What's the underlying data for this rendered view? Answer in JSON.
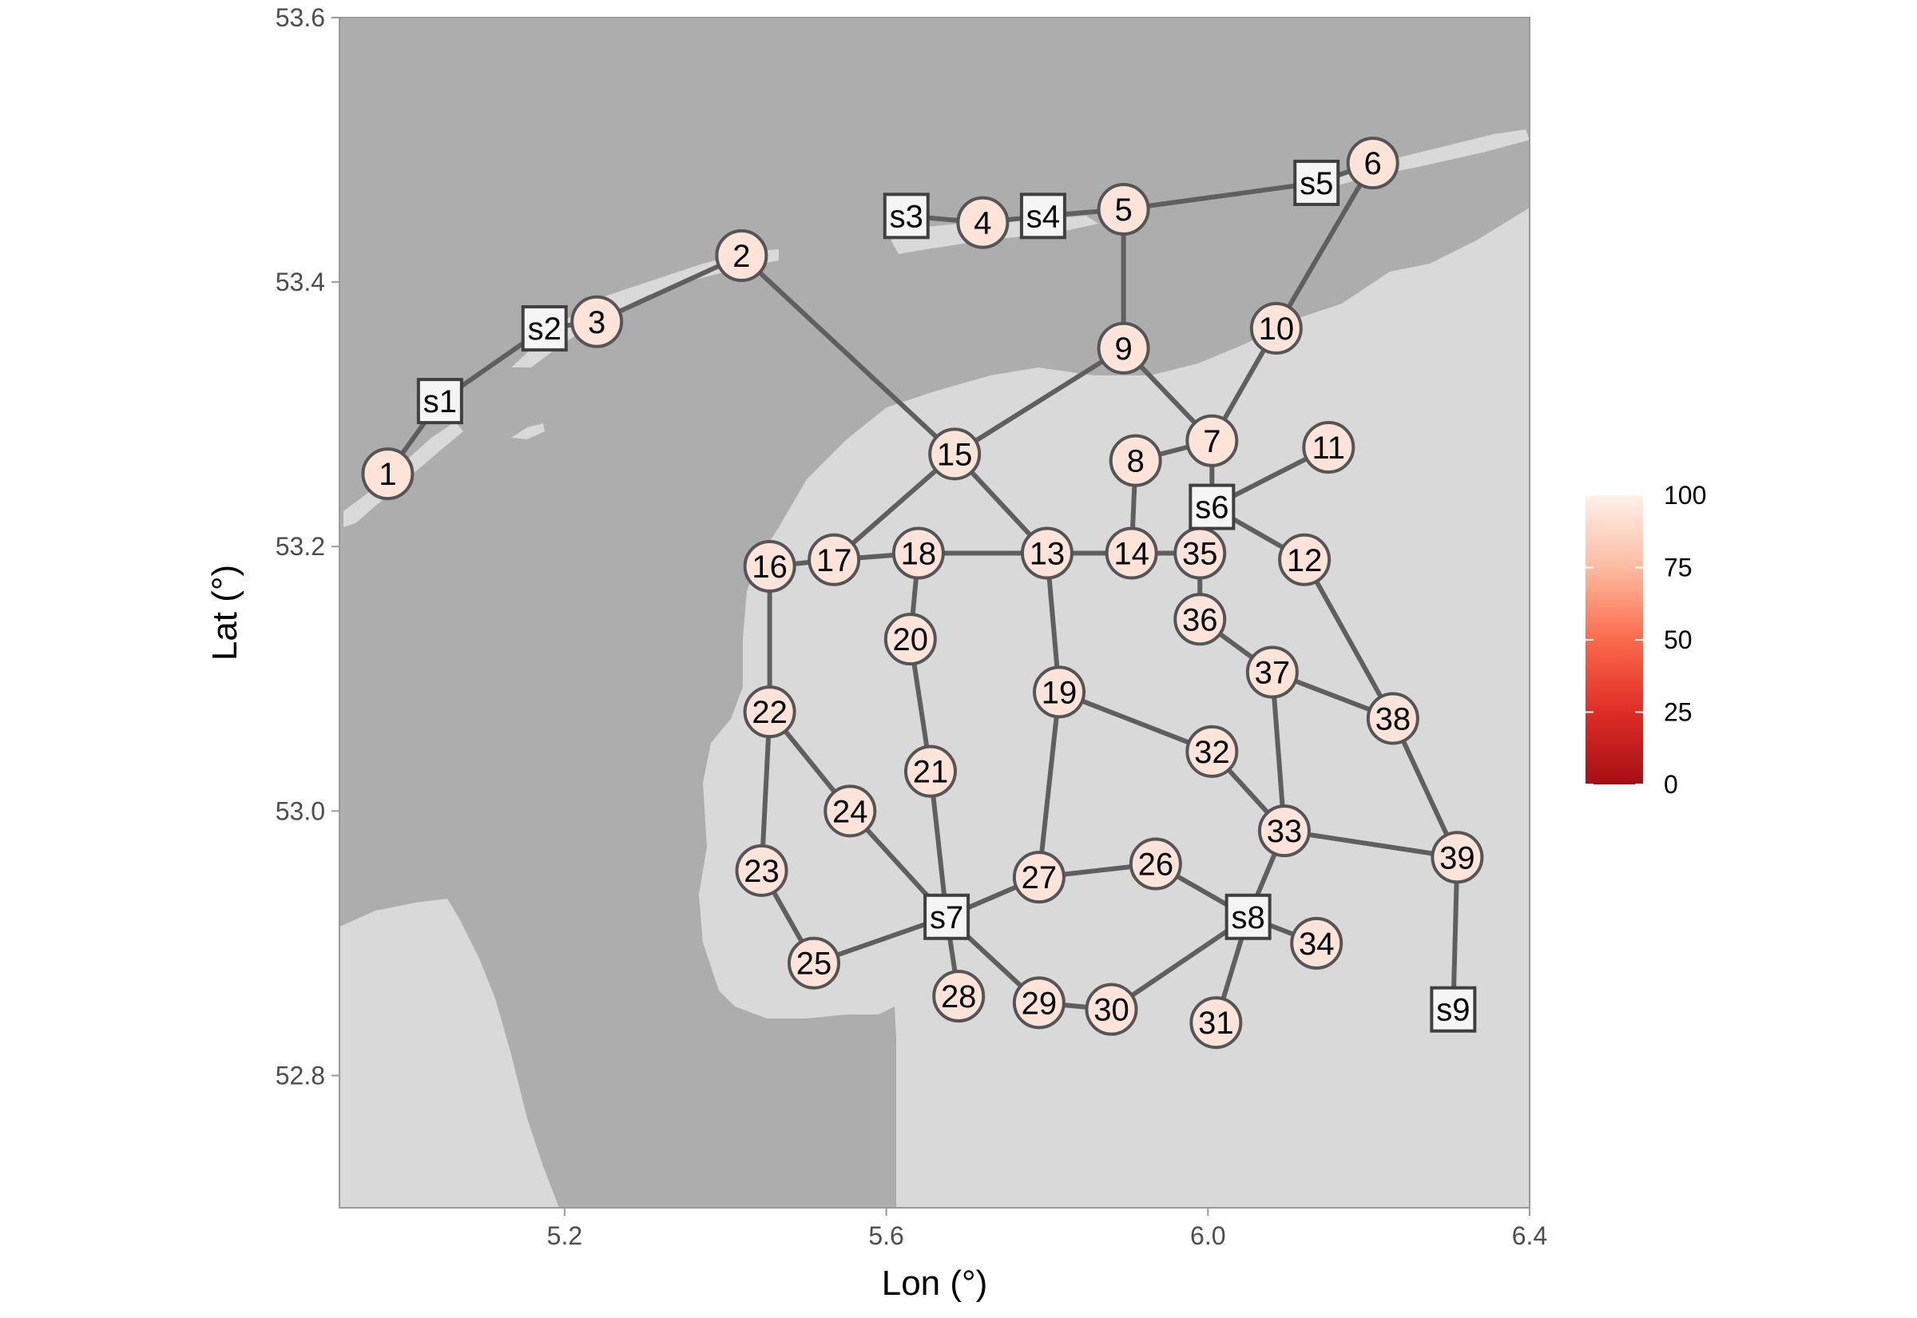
{
  "map": {
    "xlabel": "Lon (°)",
    "ylabel": "Lat (°)",
    "xlim": [
      4.92,
      6.4
    ],
    "ylim": [
      52.7,
      53.6
    ],
    "x_ticks": [
      {
        "value": 5.2,
        "label": "5.2"
      },
      {
        "value": 5.6,
        "label": "5.6"
      },
      {
        "value": 6.0,
        "label": "6.0"
      },
      {
        "value": 6.4,
        "label": "6.4"
      }
    ],
    "y_ticks": [
      {
        "value": 52.8,
        "label": "52.8"
      },
      {
        "value": 53.0,
        "label": "53.0"
      },
      {
        "value": 53.2,
        "label": "53.2"
      },
      {
        "value": 53.4,
        "label": "53.4"
      },
      {
        "value": 53.6,
        "label": "53.6"
      }
    ],
    "colors": {
      "sea": "#adadad",
      "land": "#d9d9d9",
      "edge": "#5f5f5f",
      "node_fill": "#fde3d8",
      "station_fill": "#f5f5f5"
    },
    "colorbar": {
      "min": 0,
      "max": 100,
      "labels": [
        "100",
        "75",
        "50",
        "25",
        "0"
      ],
      "colors": [
        "#fff0ea",
        "#fcbba1",
        "#fb6a4a",
        "#de2d26",
        "#a50f15"
      ]
    }
  },
  "chart_data": {
    "type": "network-map",
    "nodes": [
      {
        "id": "1",
        "kind": "node",
        "lon": 4.98,
        "lat": 53.255,
        "value": 95
      },
      {
        "id": "2",
        "kind": "node",
        "lon": 5.42,
        "lat": 53.42,
        "value": 95
      },
      {
        "id": "3",
        "kind": "node",
        "lon": 5.24,
        "lat": 53.37,
        "value": 95
      },
      {
        "id": "4",
        "kind": "node",
        "lon": 5.72,
        "lat": 53.445,
        "value": 95
      },
      {
        "id": "5",
        "kind": "node",
        "lon": 5.895,
        "lat": 53.455,
        "value": 95
      },
      {
        "id": "6",
        "kind": "node",
        "lon": 6.205,
        "lat": 53.49,
        "value": 95
      },
      {
        "id": "7",
        "kind": "node",
        "lon": 6.005,
        "lat": 53.28,
        "value": 95
      },
      {
        "id": "8",
        "kind": "node",
        "lon": 5.91,
        "lat": 53.265,
        "value": 95
      },
      {
        "id": "9",
        "kind": "node",
        "lon": 5.895,
        "lat": 53.35,
        "value": 95
      },
      {
        "id": "10",
        "kind": "node",
        "lon": 6.085,
        "lat": 53.365,
        "value": 95
      },
      {
        "id": "11",
        "kind": "node",
        "lon": 6.15,
        "lat": 53.275,
        "value": 95
      },
      {
        "id": "12",
        "kind": "node",
        "lon": 6.12,
        "lat": 53.19,
        "value": 95
      },
      {
        "id": "13",
        "kind": "node",
        "lon": 5.8,
        "lat": 53.195,
        "value": 95
      },
      {
        "id": "14",
        "kind": "node",
        "lon": 5.905,
        "lat": 53.195,
        "value": 95
      },
      {
        "id": "15",
        "kind": "node",
        "lon": 5.685,
        "lat": 53.27,
        "value": 95
      },
      {
        "id": "16",
        "kind": "node",
        "lon": 5.455,
        "lat": 53.185,
        "value": 95
      },
      {
        "id": "17",
        "kind": "node",
        "lon": 5.535,
        "lat": 53.19,
        "value": 95
      },
      {
        "id": "18",
        "kind": "node",
        "lon": 5.64,
        "lat": 53.195,
        "value": 95
      },
      {
        "id": "19",
        "kind": "node",
        "lon": 5.815,
        "lat": 53.09,
        "value": 95
      },
      {
        "id": "20",
        "kind": "node",
        "lon": 5.63,
        "lat": 53.13,
        "value": 95
      },
      {
        "id": "21",
        "kind": "node",
        "lon": 5.655,
        "lat": 53.03,
        "value": 95
      },
      {
        "id": "22",
        "kind": "node",
        "lon": 5.455,
        "lat": 53.075,
        "value": 95
      },
      {
        "id": "23",
        "kind": "node",
        "lon": 5.445,
        "lat": 52.955,
        "value": 95
      },
      {
        "id": "24",
        "kind": "node",
        "lon": 5.555,
        "lat": 53.0,
        "value": 95
      },
      {
        "id": "25",
        "kind": "node",
        "lon": 5.51,
        "lat": 52.885,
        "value": 95
      },
      {
        "id": "26",
        "kind": "node",
        "lon": 5.935,
        "lat": 52.96,
        "value": 95
      },
      {
        "id": "27",
        "kind": "node",
        "lon": 5.79,
        "lat": 52.95,
        "value": 95
      },
      {
        "id": "28",
        "kind": "node",
        "lon": 5.69,
        "lat": 52.86,
        "value": 95
      },
      {
        "id": "29",
        "kind": "node",
        "lon": 5.79,
        "lat": 52.855,
        "value": 95
      },
      {
        "id": "30",
        "kind": "node",
        "lon": 5.88,
        "lat": 52.85,
        "value": 95
      },
      {
        "id": "31",
        "kind": "node",
        "lon": 6.01,
        "lat": 52.84,
        "value": 95
      },
      {
        "id": "32",
        "kind": "node",
        "lon": 6.005,
        "lat": 53.045,
        "value": 95
      },
      {
        "id": "33",
        "kind": "node",
        "lon": 6.095,
        "lat": 52.985,
        "value": 95
      },
      {
        "id": "34",
        "kind": "node",
        "lon": 6.135,
        "lat": 52.9,
        "value": 95
      },
      {
        "id": "35",
        "kind": "node",
        "lon": 5.99,
        "lat": 53.195,
        "value": 95
      },
      {
        "id": "36",
        "kind": "node",
        "lon": 5.99,
        "lat": 53.145,
        "value": 95
      },
      {
        "id": "37",
        "kind": "node",
        "lon": 6.08,
        "lat": 53.105,
        "value": 95
      },
      {
        "id": "38",
        "kind": "node",
        "lon": 6.23,
        "lat": 53.07,
        "value": 95
      },
      {
        "id": "39",
        "kind": "node",
        "lon": 6.31,
        "lat": 52.965,
        "value": 95
      },
      {
        "id": "s1",
        "kind": "station",
        "lon": 5.045,
        "lat": 53.31,
        "value": 100
      },
      {
        "id": "s2",
        "kind": "station",
        "lon": 5.175,
        "lat": 53.365,
        "value": 100
      },
      {
        "id": "s3",
        "kind": "station",
        "lon": 5.625,
        "lat": 53.45,
        "value": 100
      },
      {
        "id": "s4",
        "kind": "station",
        "lon": 5.795,
        "lat": 53.45,
        "value": 100
      },
      {
        "id": "s5",
        "kind": "station",
        "lon": 6.135,
        "lat": 53.475,
        "value": 100
      },
      {
        "id": "s6",
        "kind": "station",
        "lon": 6.005,
        "lat": 53.23,
        "value": 100
      },
      {
        "id": "s7",
        "kind": "station",
        "lon": 5.675,
        "lat": 52.92,
        "value": 100
      },
      {
        "id": "s8",
        "kind": "station",
        "lon": 6.05,
        "lat": 52.92,
        "value": 100
      },
      {
        "id": "s9",
        "kind": "station",
        "lon": 6.305,
        "lat": 52.85,
        "value": 100
      }
    ],
    "edges": [
      [
        "1",
        "s1"
      ],
      [
        "s1",
        "s2"
      ],
      [
        "s2",
        "3"
      ],
      [
        "3",
        "2"
      ],
      [
        "2",
        "15"
      ],
      [
        "s3",
        "4"
      ],
      [
        "4",
        "s4"
      ],
      [
        "s4",
        "5"
      ],
      [
        "5",
        "s5"
      ],
      [
        "s5",
        "6"
      ],
      [
        "6",
        "10"
      ],
      [
        "10",
        "7"
      ],
      [
        "5",
        "9"
      ],
      [
        "9",
        "7"
      ],
      [
        "9",
        "15"
      ],
      [
        "7",
        "s6"
      ],
      [
        "s6",
        "11"
      ],
      [
        "s6",
        "12"
      ],
      [
        "s6",
        "35"
      ],
      [
        "8",
        "14"
      ],
      [
        "8",
        "7"
      ],
      [
        "15",
        "17"
      ],
      [
        "15",
        "13"
      ],
      [
        "16",
        "17"
      ],
      [
        "17",
        "18"
      ],
      [
        "18",
        "13"
      ],
      [
        "13",
        "14"
      ],
      [
        "14",
        "35"
      ],
      [
        "35",
        "36"
      ],
      [
        "36",
        "37"
      ],
      [
        "37",
        "38"
      ],
      [
        "37",
        "33"
      ],
      [
        "12",
        "38"
      ],
      [
        "38",
        "39"
      ],
      [
        "39",
        "s9"
      ],
      [
        "33",
        "39"
      ],
      [
        "33",
        "32"
      ],
      [
        "32",
        "19"
      ],
      [
        "13",
        "19"
      ],
      [
        "19",
        "27"
      ],
      [
        "18",
        "20"
      ],
      [
        "20",
        "21"
      ],
      [
        "21",
        "s7"
      ],
      [
        "16",
        "22"
      ],
      [
        "22",
        "23"
      ],
      [
        "22",
        "24"
      ],
      [
        "24",
        "s7"
      ],
      [
        "23",
        "25"
      ],
      [
        "25",
        "s7"
      ],
      [
        "s7",
        "27"
      ],
      [
        "s7",
        "28"
      ],
      [
        "s7",
        "29"
      ],
      [
        "29",
        "30"
      ],
      [
        "30",
        "s8"
      ],
      [
        "27",
        "26"
      ],
      [
        "26",
        "s8"
      ],
      [
        "s8",
        "31"
      ],
      [
        "s8",
        "34"
      ],
      [
        "s8",
        "33"
      ]
    ]
  }
}
